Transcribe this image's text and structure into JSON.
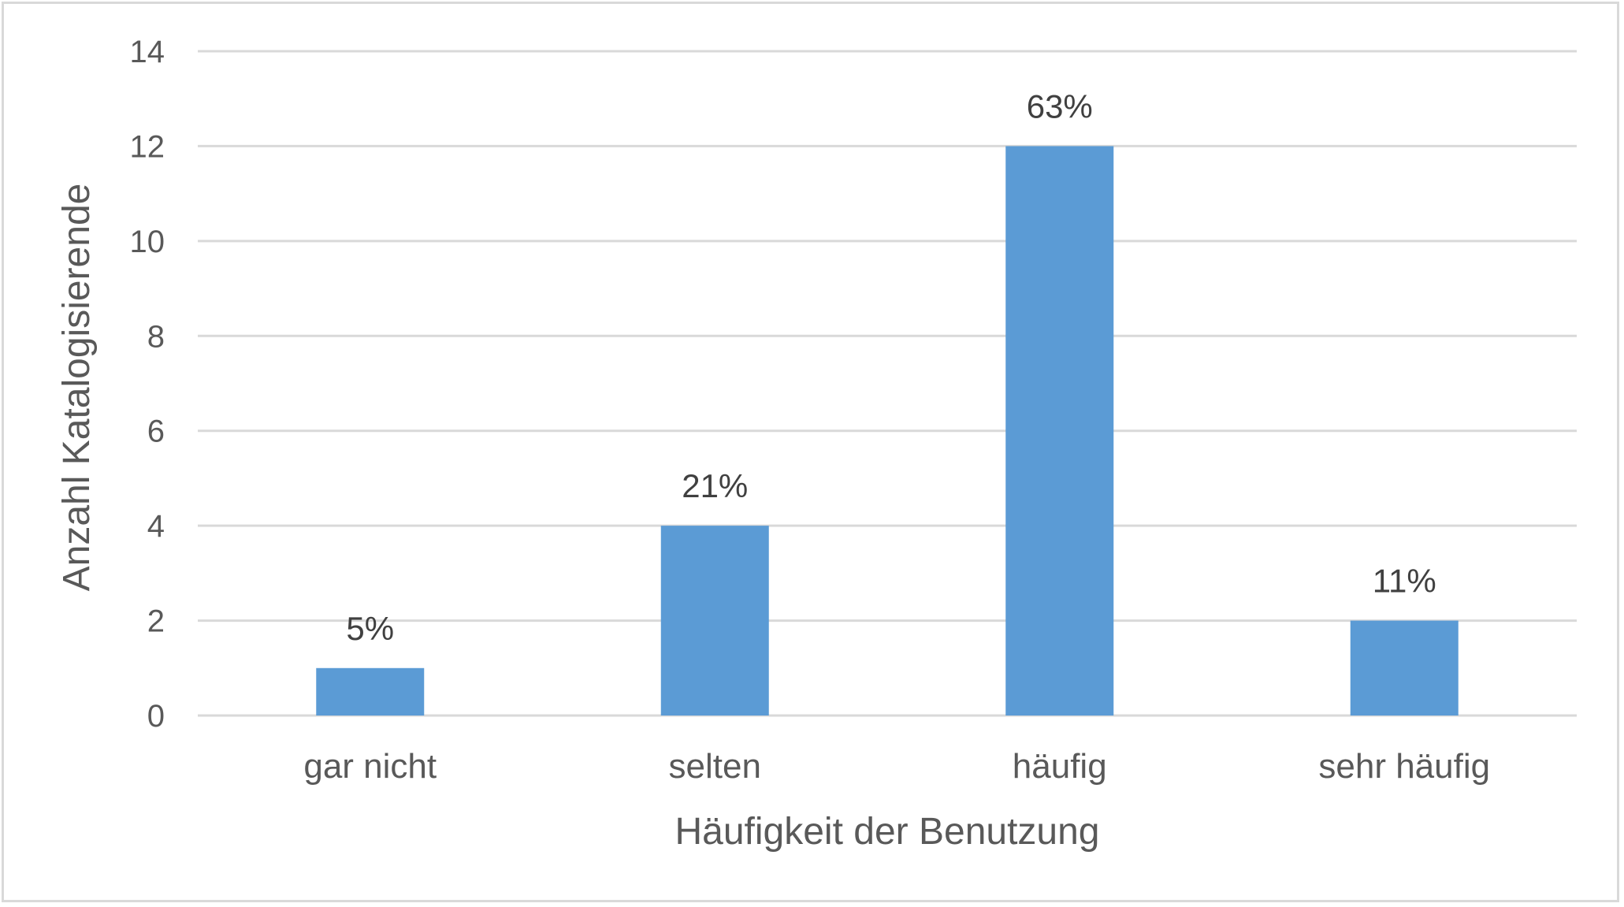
{
  "chart_data": {
    "type": "bar",
    "categories": [
      "gar nicht",
      "selten",
      "häufig",
      "sehr häufig"
    ],
    "values": [
      1,
      4,
      12,
      2
    ],
    "data_labels": [
      "5%",
      "21%",
      "63%",
      "11%"
    ],
    "title": "",
    "xlabel": "Häufigkeit der Benutzung",
    "ylabel": "Anzahl Katalogisierende",
    "ylim": [
      0,
      14
    ],
    "yticks": [
      0,
      2,
      4,
      6,
      8,
      10,
      12,
      14
    ],
    "grid": true,
    "legend": "none",
    "bar_color": "#5b9bd5"
  }
}
